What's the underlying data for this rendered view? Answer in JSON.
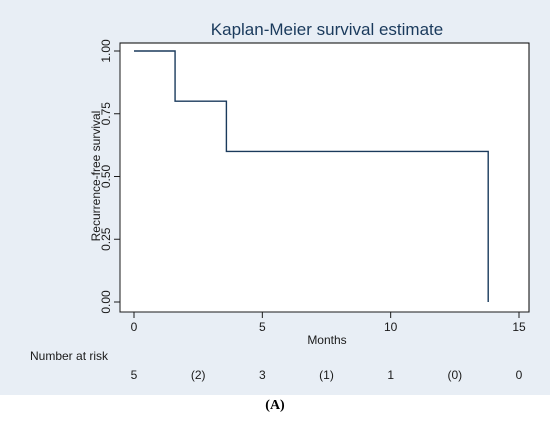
{
  "chart_data": {
    "type": "line",
    "title": "Kaplan-Meier survival estimate",
    "xlabel": "Months",
    "ylabel": "Recurrence-free survival",
    "xlim": [
      0,
      15
    ],
    "ylim": [
      0,
      1
    ],
    "x_ticks": [
      "0",
      "5",
      "10",
      "15"
    ],
    "y_ticks": [
      "0.00",
      "0.25",
      "0.50",
      "0.75",
      "1.00"
    ],
    "grid": false,
    "step_curve": {
      "x": [
        0,
        1.6,
        3.6,
        13.8
      ],
      "y": [
        1.0,
        0.8,
        0.6,
        0.0
      ]
    },
    "number_at_risk": {
      "label": "Number at risk",
      "values": [
        "5",
        "(2)",
        "3",
        "(1)",
        "1",
        "(0)",
        "0"
      ],
      "x": [
        0,
        2.5,
        5,
        7.5,
        10,
        12.5,
        15
      ]
    }
  },
  "caption": "(A)",
  "colors": {
    "background": "#e8eef5",
    "line": "#1a3a5c"
  }
}
